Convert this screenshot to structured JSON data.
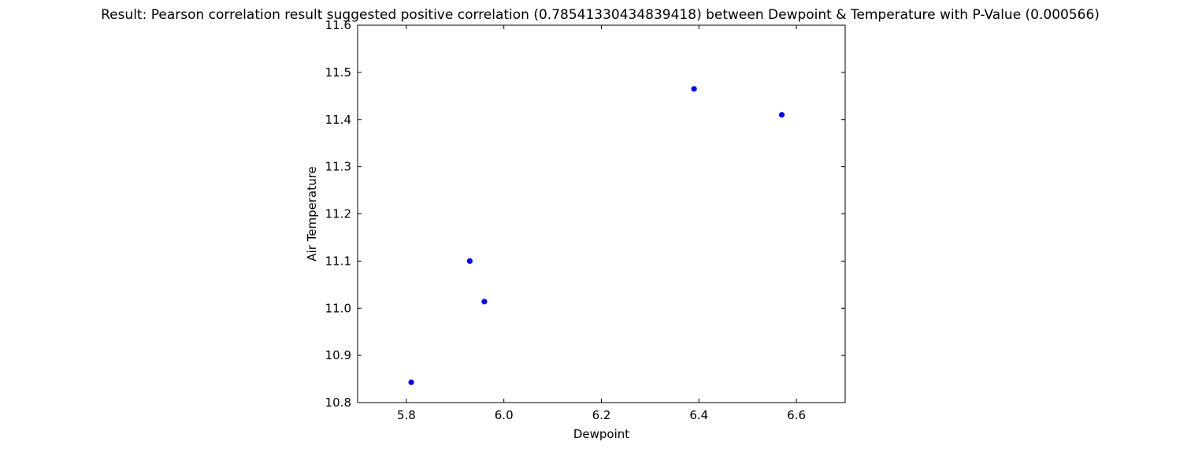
{
  "chart_data": {
    "type": "scatter",
    "title": "Result: Pearson correlation result suggested positive correlation (0.78541330434839418) between Dewpoint & Temperature with P-Value (0.000566)",
    "xlabel": "Dewpoint",
    "ylabel": "Air Temperature",
    "xlim": [
      5.7,
      6.7
    ],
    "ylim": [
      10.8,
      11.6
    ],
    "xticks": [
      5.8,
      6.0,
      6.2,
      6.4,
      6.6
    ],
    "xtick_labels": [
      "5.8",
      "6.0",
      "6.2",
      "6.4",
      "6.6"
    ],
    "yticks": [
      10.8,
      10.9,
      11.0,
      11.1,
      11.2,
      11.3,
      11.4,
      11.5,
      11.6
    ],
    "ytick_labels": [
      "10.8",
      "10.9",
      "11.0",
      "11.1",
      "11.2",
      "11.3",
      "11.4",
      "11.5",
      "11.6"
    ],
    "grid": false,
    "marker_color": "#0000ff",
    "points": [
      {
        "x": 5.81,
        "y": 10.843
      },
      {
        "x": 5.93,
        "y": 11.1
      },
      {
        "x": 5.96,
        "y": 11.014
      },
      {
        "x": 6.39,
        "y": 11.465
      },
      {
        "x": 6.57,
        "y": 11.41
      }
    ]
  }
}
